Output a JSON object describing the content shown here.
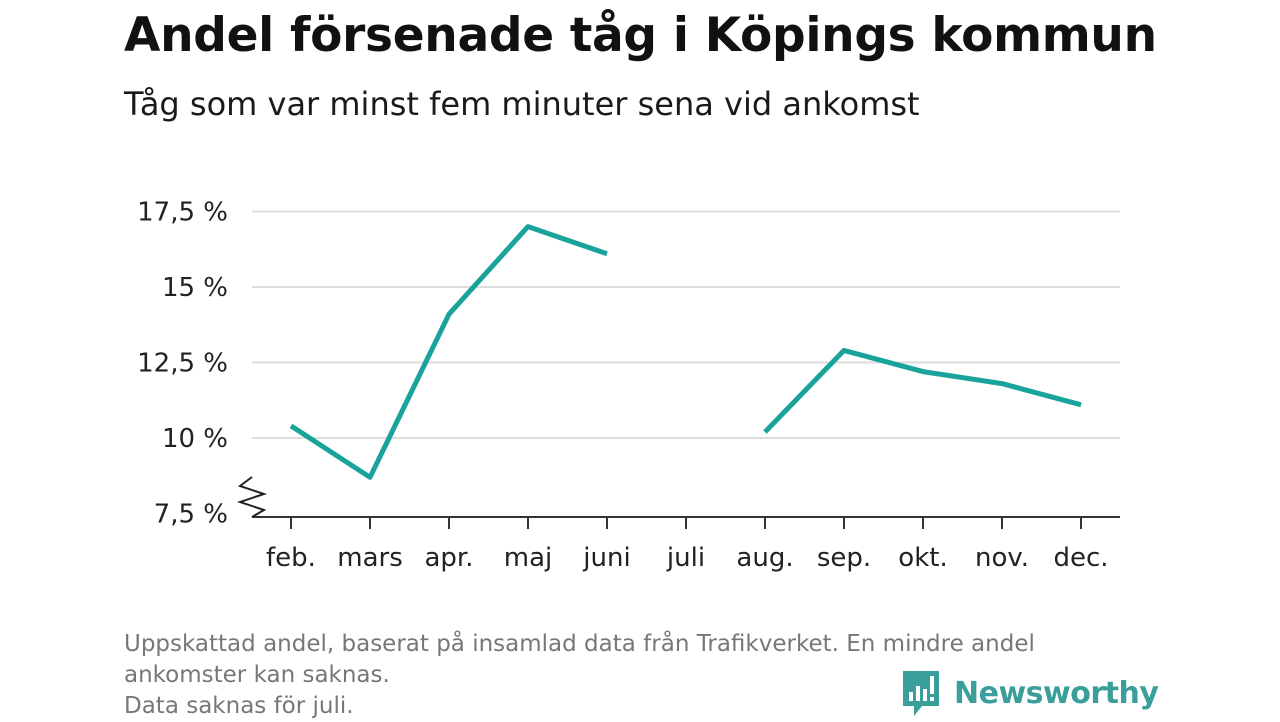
{
  "header": {
    "title": "Andel försenade tåg i Köpings kommun",
    "subtitle": "Tåg som var minst fem minuter sena vid ankomst"
  },
  "chart_data": {
    "type": "line",
    "title": "Andel försenade tåg i Köpings kommun",
    "subtitle": "Tåg som var minst fem minuter sena vid ankomst",
    "categories": [
      "feb.",
      "mars",
      "apr.",
      "maj",
      "juni",
      "juli",
      "aug.",
      "sep.",
      "okt.",
      "nov.",
      "dec."
    ],
    "series": [
      {
        "values": [
          10.4,
          8.7,
          14.1,
          17.0,
          16.1,
          null,
          10.2,
          12.9,
          12.2,
          11.8,
          11.1
        ]
      }
    ],
    "yticks": [
      7.5,
      10,
      12.5,
      15,
      17.5
    ],
    "ytick_labels": [
      "7,5 %",
      "10 %",
      "12,5 %",
      "15 %",
      "17,5 %"
    ],
    "ylim": [
      7.5,
      18
    ],
    "grid": true,
    "axis_break": true,
    "line_color": "#19a39b",
    "xlabel": "",
    "ylabel": ""
  },
  "footer": {
    "note_lines": [
      "Uppskattad andel, baserat på insamlad data från Trafikverket. En mindre andel",
      "ankomster kan saknas.",
      "Data saknas för juli."
    ],
    "brand": "Newsworthy",
    "brand_color": "#3a9e9a",
    "brand_icon": "newsworthy-logo-icon"
  }
}
